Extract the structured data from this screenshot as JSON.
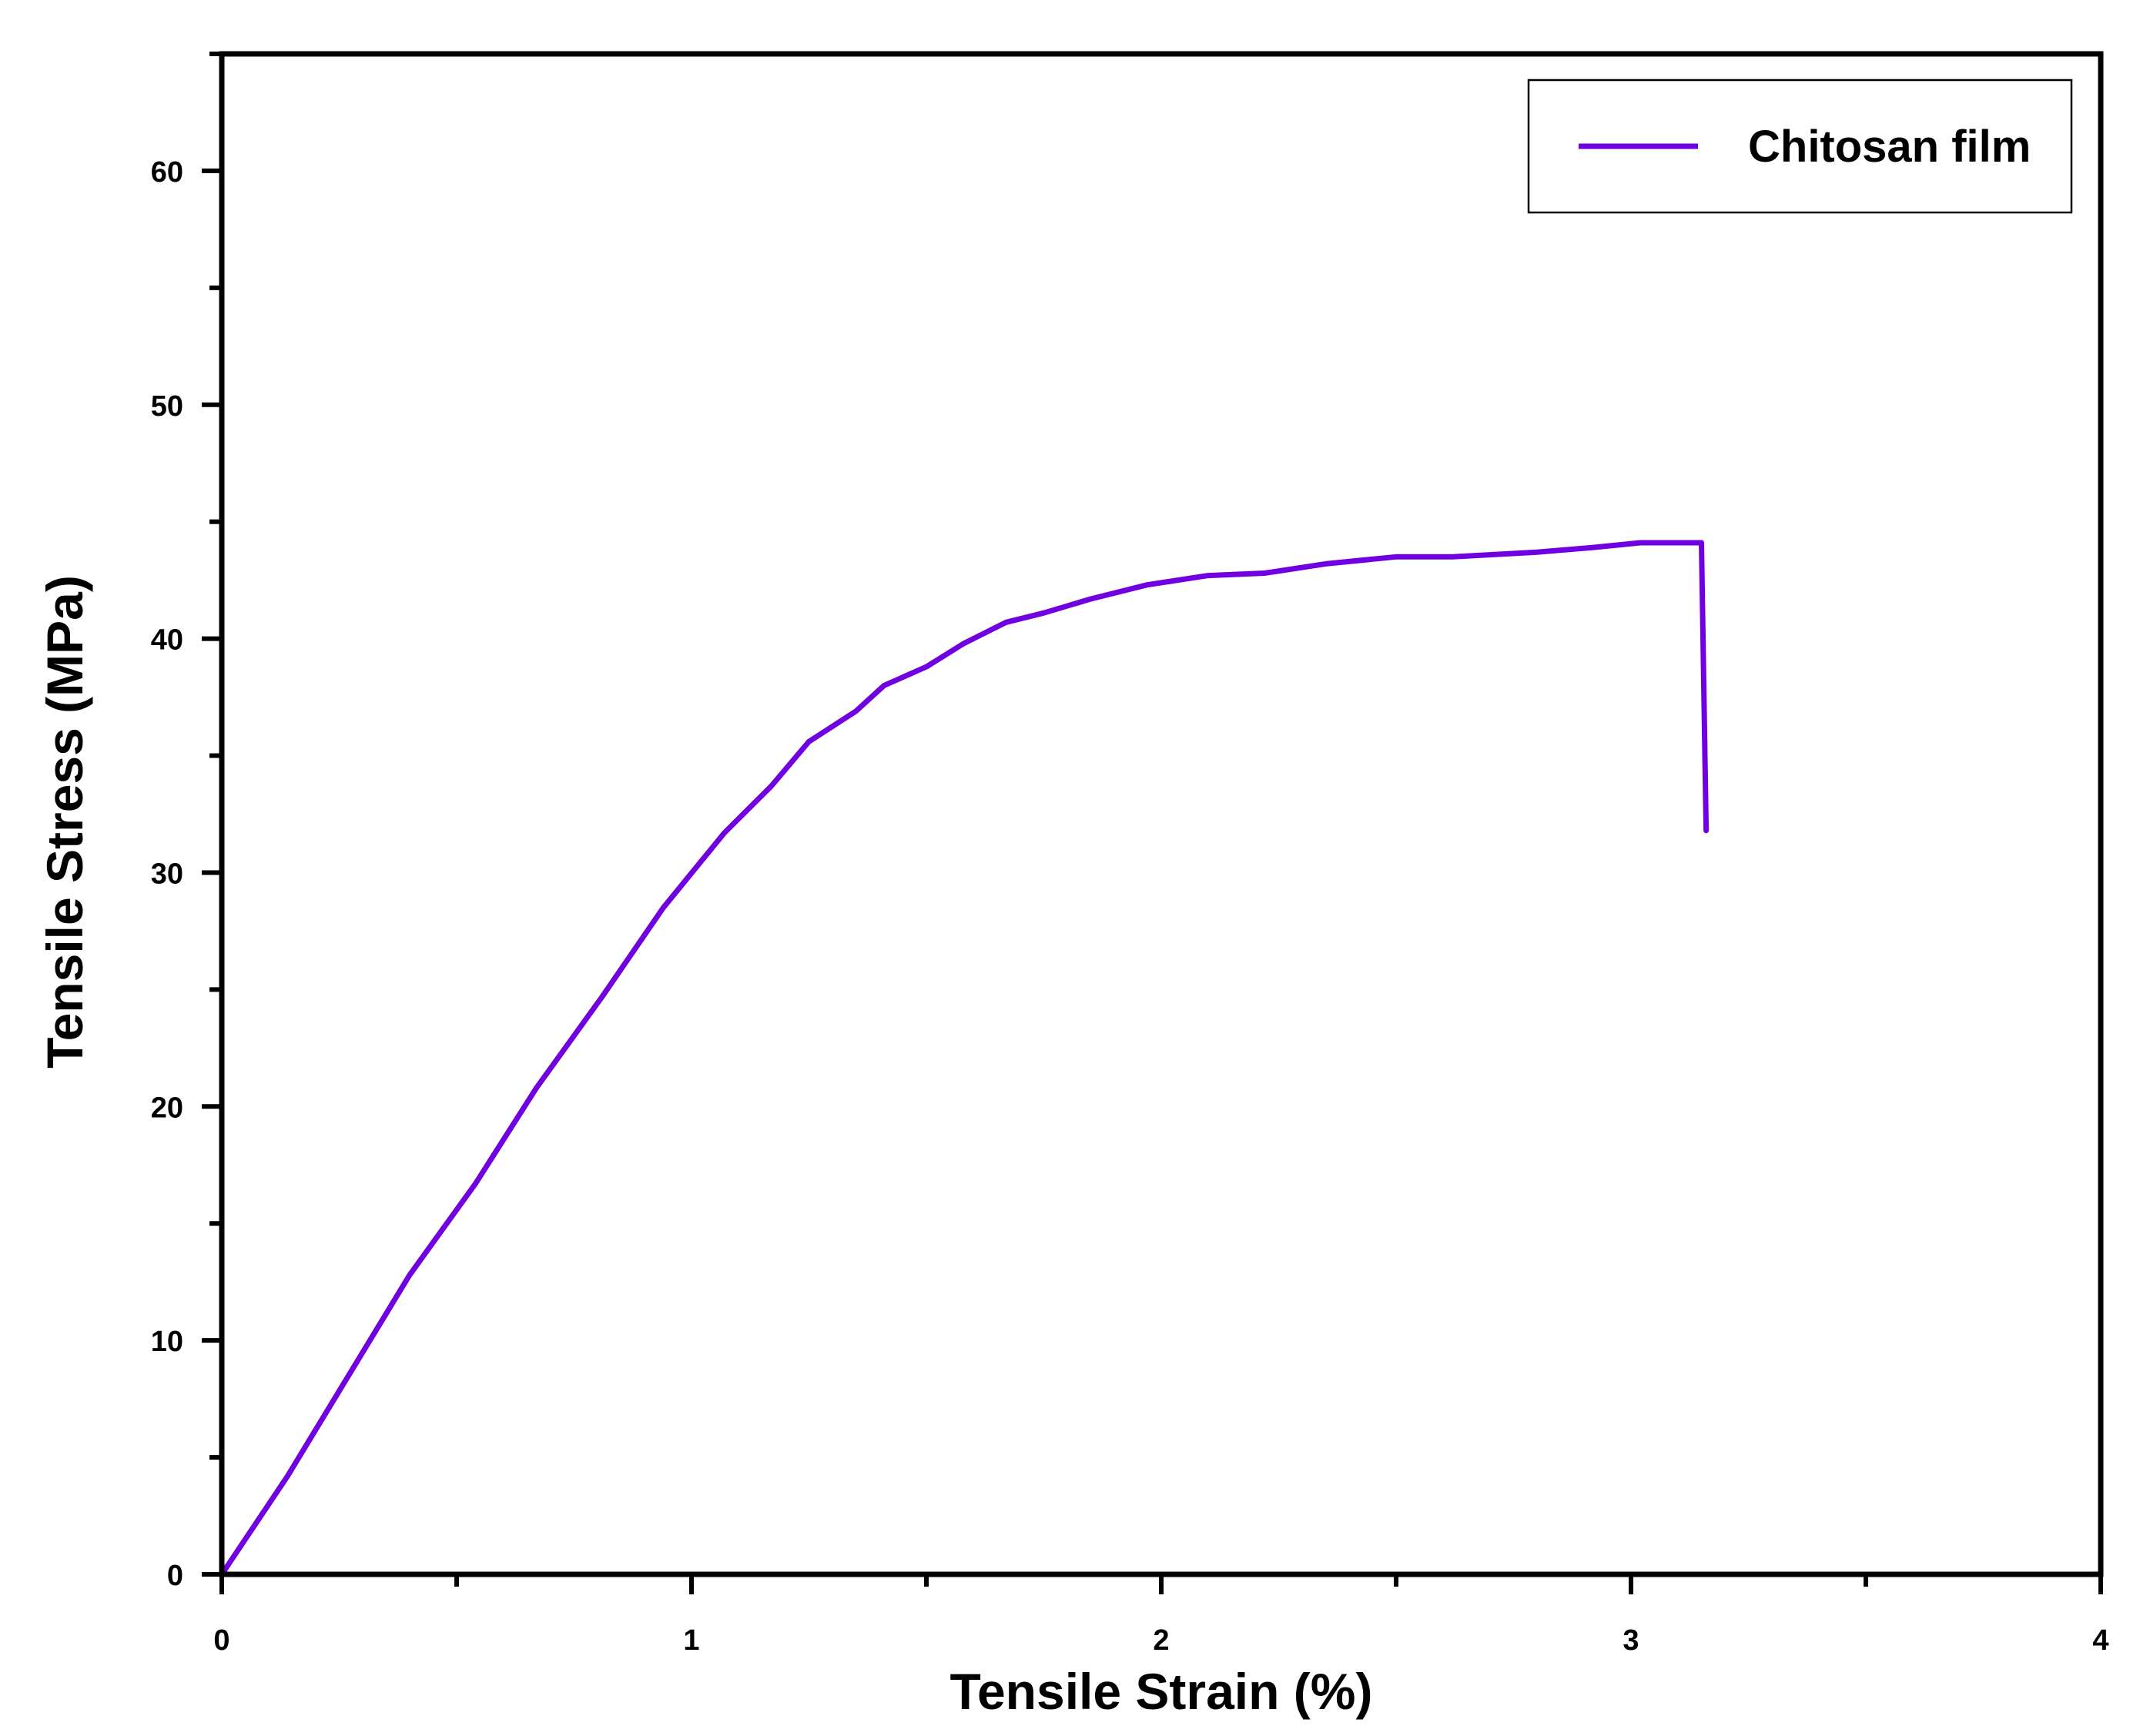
{
  "chart_data": {
    "type": "line",
    "xlabel": "Tensile Strain (%)",
    "ylabel": "Tensile Stress (MPa)",
    "xlim": [
      0,
      4
    ],
    "ylim": [
      0,
      65
    ],
    "x_ticks": [
      "0",
      "1",
      "2",
      "3",
      "4"
    ],
    "y_ticks": [
      "0",
      "10",
      "20",
      "30",
      "40",
      "50",
      "60"
    ],
    "grid": false,
    "legend_position": "top-right",
    "series": [
      {
        "name": "Chitosan film",
        "color": "#7000E0",
        "x": [
          0,
          0.14,
          0.27,
          0.4,
          0.54,
          0.67,
          0.81,
          0.94,
          1.07,
          1.17,
          1.25,
          1.35,
          1.41,
          1.5,
          1.58,
          1.67,
          1.75,
          1.85,
          1.97,
          2.1,
          2.22,
          2.35,
          2.5,
          2.62,
          2.8,
          2.92,
          3.02,
          3.15,
          3.16
        ],
        "values": [
          0,
          4.2,
          8.5,
          12.8,
          16.7,
          20.8,
          24.7,
          28.5,
          31.7,
          33.7,
          35.6,
          36.9,
          38.0,
          38.8,
          39.8,
          40.7,
          41.1,
          41.7,
          42.3,
          42.7,
          42.8,
          43.2,
          43.5,
          43.5,
          43.7,
          43.9,
          44.1,
          44.1,
          31.8
        ]
      }
    ]
  }
}
